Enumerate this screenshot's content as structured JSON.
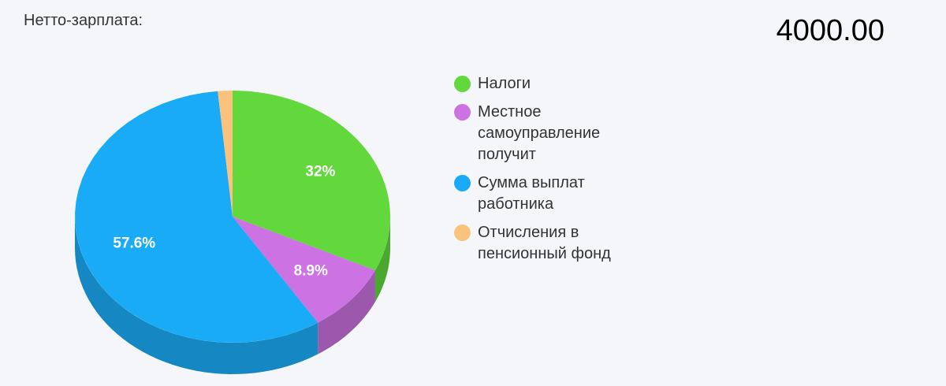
{
  "header": {
    "label": "Нетто-зарплата:",
    "amount": "4000.00"
  },
  "chart_data": {
    "type": "pie",
    "categories": [
      "Налоги",
      "Местное самоуправление получит",
      "Сумма выплат работника",
      "Отчисления в пенсионный фонд"
    ],
    "values": [
      32,
      8.9,
      57.6,
      1.5
    ],
    "value_labels": [
      "32%",
      "8.9%",
      "57.6%",
      null
    ],
    "colors": [
      "#62d83c",
      "#cc72e3",
      "#1aabf7",
      "#fbc27e"
    ],
    "side_colors": [
      "#4aa82e",
      "#9b58ad",
      "#1588c4",
      "#d9a060"
    ],
    "legend": "right"
  }
}
